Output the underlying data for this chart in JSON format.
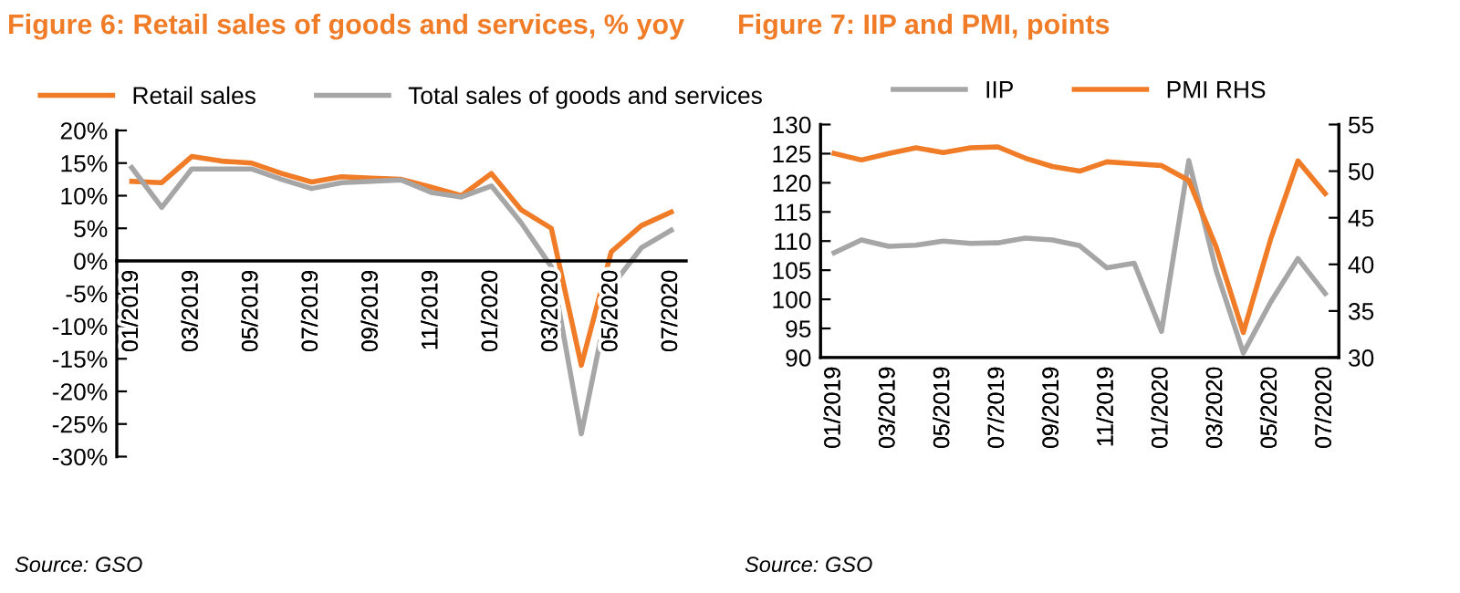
{
  "chart_data": [
    {
      "type": "line",
      "title": "Figure 6: Retail sales of goods and services, % yoy",
      "categories": [
        "01/2019",
        null,
        "03/2019",
        null,
        "05/2019",
        null,
        "07/2019",
        null,
        "09/2019",
        null,
        "11/2019",
        null,
        "01/2020",
        null,
        "03/2020",
        null,
        "05/2020",
        null,
        "07/2020"
      ],
      "series": [
        {
          "name": "Retail sales",
          "color": "#f07c28",
          "values": [
            12.2,
            12.0,
            16.0,
            15.3,
            15.0,
            13.4,
            12.1,
            12.9,
            12.7,
            12.5,
            11.3,
            10.0,
            13.4,
            7.8,
            5.0,
            -16.0,
            1.4,
            5.4,
            7.5
          ]
        },
        {
          "name": "Total sales of goods and services",
          "color": "#a6a6a6",
          "values": [
            14.3,
            8.2,
            14.1,
            14.1,
            14.1,
            12.5,
            11.1,
            12.0,
            12.2,
            12.4,
            10.5,
            9.8,
            11.5,
            5.8,
            -0.9,
            -26.5,
            -4.0,
            2.0,
            4.7
          ]
        }
      ],
      "ylim": [
        -30,
        20
      ],
      "yticks": [
        {
          "value": -30,
          "label": "-30%"
        },
        {
          "value": -25,
          "label": "-25%"
        },
        {
          "value": -20,
          "label": "-20%"
        },
        {
          "value": -15,
          "label": "-15%"
        },
        {
          "value": -10,
          "label": "-10%"
        },
        {
          "value": -5,
          "label": "-5%"
        },
        {
          "value": 0,
          "label": "0%"
        },
        {
          "value": 5,
          "label": "5%"
        },
        {
          "value": 10,
          "label": "10%"
        },
        {
          "value": 15,
          "label": "15%"
        },
        {
          "value": 20,
          "label": "20%"
        }
      ],
      "legend": "top",
      "grid": false,
      "marker": "none",
      "line_style": "solid",
      "annotations": [
        "Source: GSO"
      ]
    },
    {
      "type": "line",
      "title": "Figure 7: IIP and PMI, points",
      "categories": [
        "01/2019",
        null,
        "03/2019",
        null,
        "05/2019",
        null,
        "07/2019",
        null,
        "09/2019",
        null,
        "11/2019",
        null,
        "01/2020",
        null,
        "03/2020",
        null,
        "05/2020",
        null,
        "07/2020"
      ],
      "series": [
        {
          "name": "IIP",
          "color": "#a6a6a6",
          "values": [
            108.0,
            110.2,
            109.1,
            109.3,
            110.0,
            109.6,
            109.7,
            110.5,
            110.2,
            109.2,
            105.4,
            106.2,
            94.5,
            123.8,
            105.0,
            90.8,
            99.5,
            107.0,
            101.0
          ]
        },
        {
          "name": "PMI RHS",
          "color": "#f07c28",
          "axis": "y2",
          "values": [
            51.9,
            51.2,
            51.9,
            52.5,
            52.0,
            52.5,
            52.6,
            51.4,
            50.5,
            50.0,
            51.0,
            50.8,
            50.6,
            49.0,
            41.9,
            32.7,
            42.7,
            51.1,
            47.6
          ]
        }
      ],
      "ylim": [
        90,
        130
      ],
      "yticks": [
        90,
        95,
        100,
        105,
        110,
        115,
        120,
        125,
        130
      ],
      "y2lim": [
        30,
        55
      ],
      "y2ticks": [
        30,
        35,
        40,
        45,
        50,
        55
      ],
      "legend": "top",
      "grid": false,
      "marker": "none",
      "line_style": "solid",
      "annotations": [
        "Source: GSO"
      ]
    }
  ]
}
